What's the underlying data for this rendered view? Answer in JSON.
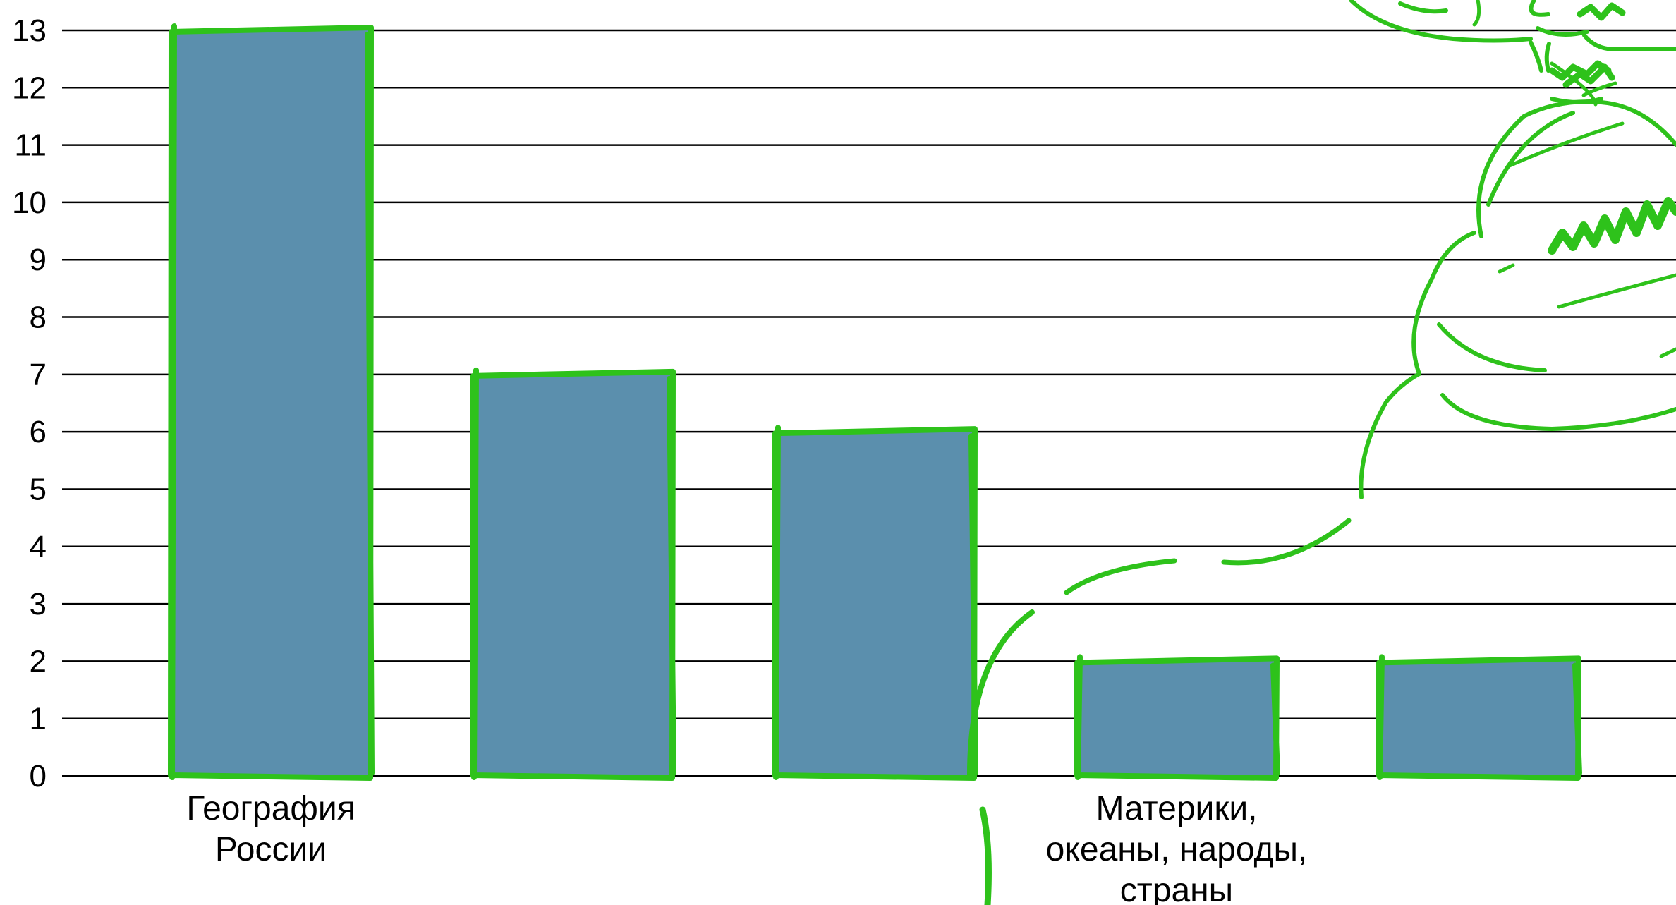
{
  "chart_data": {
    "type": "bar",
    "categories": [
      "География России",
      "",
      "",
      "Материки, океаны, народы, страны",
      ""
    ],
    "category_lines": [
      [
        "География",
        "России"
      ],
      [],
      [],
      [
        "Материки,",
        "океаны, народы,",
        "страны"
      ],
      []
    ],
    "values": [
      13,
      7,
      6,
      2,
      2
    ],
    "ylim": [
      0,
      13
    ],
    "yticks": [
      0,
      1,
      2,
      3,
      4,
      5,
      6,
      7,
      8,
      9,
      10,
      11,
      12,
      13
    ],
    "grid": true,
    "title": "",
    "xlabel": "",
    "ylabel": ""
  },
  "colors": {
    "bar_fill": "#5b8fad",
    "sketch_outline": "#2ec21b",
    "grid": "#000000"
  }
}
